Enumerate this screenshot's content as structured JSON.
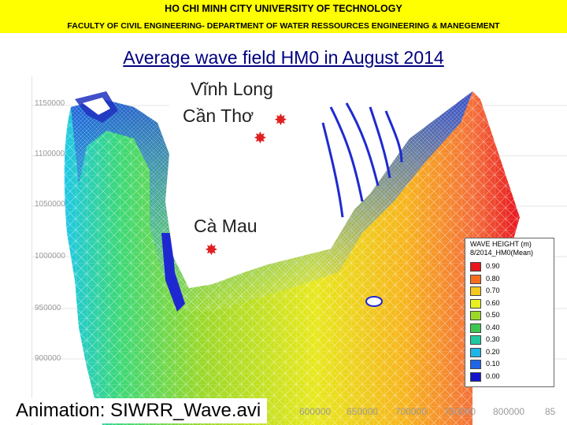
{
  "header": {
    "university": "HO CHI MINH CITY UNIVERSITY OF TECHNOLOGY",
    "faculty": "FACULTY OF CIVIL ENGINEERING- DEPARTMENT OF WATER RESSOURCES ENGINEERING & MANEGEMENT"
  },
  "title": "Average wave field HM0 in August 2014",
  "map": {
    "y_ticks": [
      "1150000",
      "1100000",
      "1050000",
      "1000000",
      "950000",
      "900000"
    ],
    "x_ticks": [
      "600000",
      "650000",
      "700000",
      "750000",
      "800000",
      "85"
    ],
    "cities": [
      {
        "name": "Vĩnh Long"
      },
      {
        "name": "Cần Thơ"
      },
      {
        "name": "Cà Mau"
      }
    ],
    "legend": {
      "title_line1": "WAVE HEIGHT (m)",
      "title_line2": "8/2014_HM0(Mean)",
      "levels": [
        {
          "label": "0.90",
          "color": "#e8141e"
        },
        {
          "label": "0.80",
          "color": "#f46e1e"
        },
        {
          "label": "0.70",
          "color": "#f7c81e"
        },
        {
          "label": "0.60",
          "color": "#e8f01e"
        },
        {
          "label": "0.50",
          "color": "#9ad82a"
        },
        {
          "label": "0.40",
          "color": "#3cc850"
        },
        {
          "label": "0.30",
          "color": "#1ec8a0"
        },
        {
          "label": "0.20",
          "color": "#1eb4e6"
        },
        {
          "label": "0.10",
          "color": "#1e64e6"
        },
        {
          "label": "0.00",
          "color": "#1414c8"
        }
      ]
    }
  },
  "animation_caption": "Animation: SIWRR_Wave.avi"
}
